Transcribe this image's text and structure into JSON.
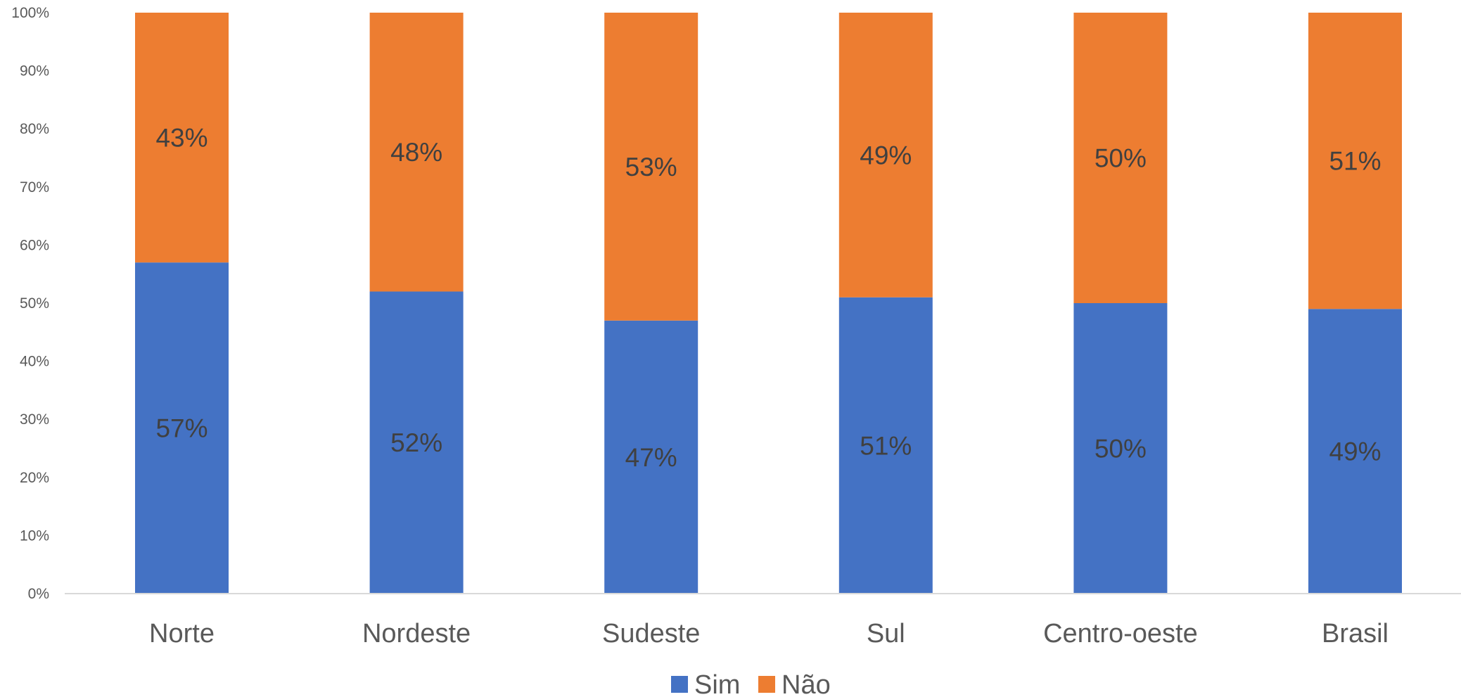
{
  "chart_data": {
    "type": "bar",
    "stacked": true,
    "percent_stacked": true,
    "categories": [
      "Norte",
      "Nordeste",
      "Sudeste",
      "Sul",
      "Centro-oeste",
      "Brasil"
    ],
    "series": [
      {
        "name": "Sim",
        "color": "#4472C4",
        "values": [
          57,
          52,
          47,
          51,
          50,
          49
        ],
        "labels": [
          "57%",
          "52%",
          "47%",
          "51%",
          "50%",
          "49%"
        ]
      },
      {
        "name": "Não",
        "color": "#ED7D31",
        "values": [
          43,
          48,
          53,
          49,
          50,
          51
        ],
        "labels": [
          "43%",
          "48%",
          "53%",
          "49%",
          "50%",
          "51%"
        ]
      }
    ],
    "ylim": [
      0,
      100
    ],
    "yticks": [
      "0%",
      "10%",
      "20%",
      "30%",
      "40%",
      "50%",
      "60%",
      "70%",
      "80%",
      "90%",
      "100%"
    ],
    "grid": false,
    "legend_position": "bottom",
    "title": "",
    "xlabel": "",
    "ylabel": ""
  }
}
